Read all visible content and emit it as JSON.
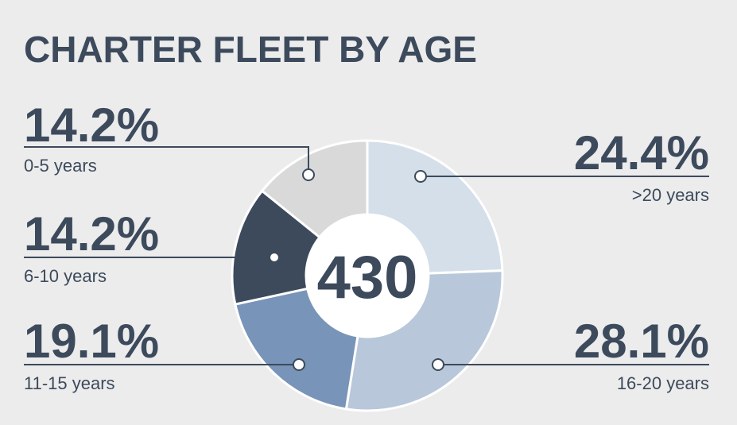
{
  "chart_data": {
    "type": "donut",
    "title": "CHARTER FLEET BY AGE",
    "total": 430,
    "categories": [
      ">20 years",
      "16-20 years",
      "11-15 years",
      "6-10 years",
      "0-5 years"
    ],
    "values": [
      24.4,
      28.1,
      19.1,
      14.2,
      14.2
    ],
    "value_labels": [
      "24.4%",
      "28.1%",
      "19.1%",
      "14.2%",
      "14.2%"
    ],
    "colors": [
      "#d5dfe9",
      "#b8c7da",
      "#7894b8",
      "#3c4a5c",
      "#d9d9d9"
    ]
  }
}
